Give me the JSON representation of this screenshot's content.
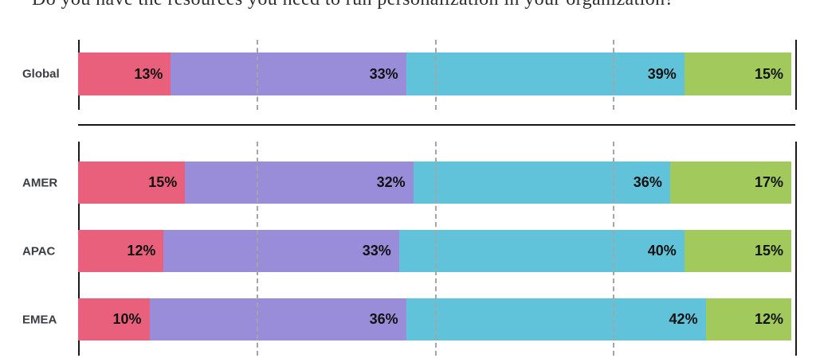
{
  "title": "Do you have the resources you need to run personalization in your organization?",
  "chart_data": {
    "type": "bar",
    "stacked": true,
    "orientation": "horizontal",
    "unit": "%",
    "xlim": [
      0,
      100
    ],
    "gridlines_percent": [
      25,
      50,
      75
    ],
    "gridline_style": "dashed",
    "segment_colors": [
      "#E9607C",
      "#998CD8",
      "#61C3DA",
      "#A1C95B"
    ],
    "groups": [
      {
        "name": "global",
        "rows": [
          {
            "label": "Global",
            "values": [
              13,
              33,
              39,
              15
            ]
          }
        ]
      },
      {
        "name": "regions",
        "rows": [
          {
            "label": "AMER",
            "values": [
              15,
              32,
              36,
              17
            ]
          },
          {
            "label": "APAC",
            "values": [
              12,
              33,
              40,
              15
            ]
          },
          {
            "label": "EMEA",
            "values": [
              10,
              36,
              42,
              12
            ]
          }
        ]
      }
    ]
  },
  "colors": {
    "axis": "#1a1a1a",
    "gridline": "#a5a5a5",
    "row_label": "#3a3d42",
    "value_label": "#121212"
  }
}
